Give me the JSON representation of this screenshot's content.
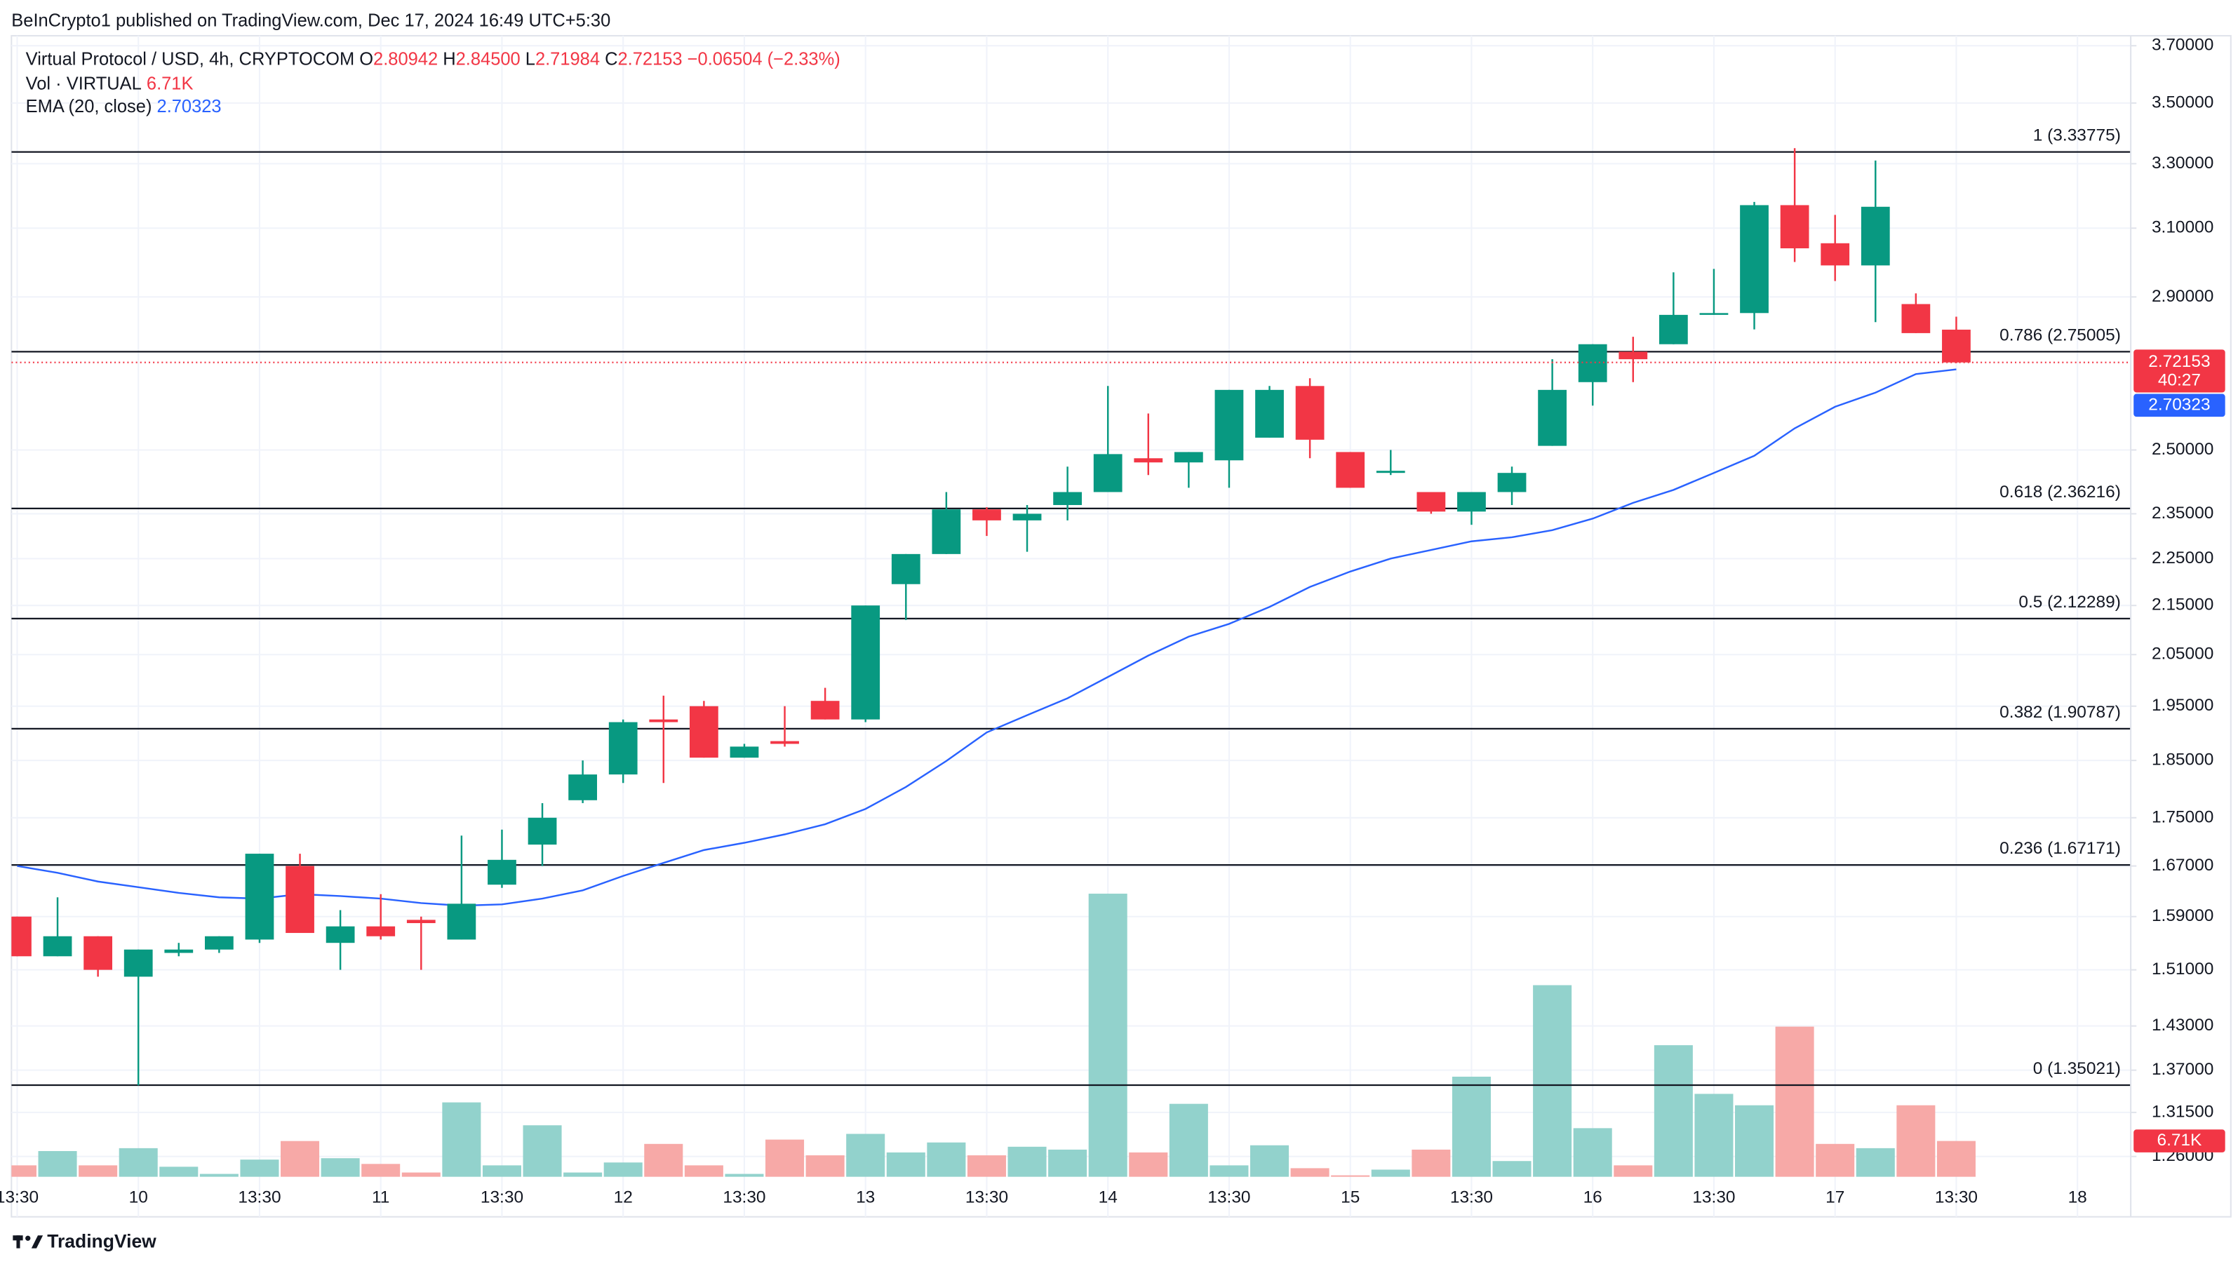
{
  "header": {
    "publisher": "BeInCrypto1 published on TradingView.com, Dec 17, 2024 16:49 UTC+5:30"
  },
  "legend": {
    "symbol": "Virtual Protocol / USD, 4h, CRYPTOCOM",
    "fields": [
      {
        "key": "O",
        "text": "2.80942"
      },
      {
        "key": "H",
        "text": "2.84500"
      },
      {
        "key": "L",
        "text": "2.71984"
      },
      {
        "key": "C",
        "text": "2.72153"
      }
    ],
    "change": "−0.06504 (−2.33%)"
  },
  "footer": {
    "brand": "TradingView"
  },
  "chart_data": {
    "type": "candlestick",
    "log_scale": true,
    "grid": true,
    "up_color": "#089981",
    "down_color": "#f23645",
    "volume_up_color": "#92d2cc",
    "volume_down_color": "#f7a9a7",
    "categories": [
      "13:30",
      null,
      null,
      "10",
      null,
      null,
      "13:30",
      null,
      null,
      "11",
      null,
      null,
      "13:30",
      null,
      null,
      "12",
      null,
      null,
      "13:30",
      null,
      null,
      "13",
      null,
      null,
      "13:30",
      null,
      null,
      "14",
      null,
      null,
      "13:30",
      null,
      null,
      "15",
      null,
      null,
      "13:30",
      null,
      null,
      "16",
      null,
      null,
      "13:30",
      null,
      null,
      "17",
      null,
      null,
      "13:30",
      null,
      null,
      "18"
    ],
    "open": [
      1.59,
      1.53,
      1.56,
      1.5,
      1.535,
      1.54,
      1.555,
      1.67,
      1.55,
      1.575,
      1.585,
      1.555,
      1.64,
      1.705,
      1.78,
      1.825,
      1.925,
      1.95,
      1.855,
      1.885,
      1.96,
      1.925,
      2.195,
      2.26,
      2.36,
      2.335,
      2.37,
      2.4,
      2.48,
      2.47,
      2.475,
      2.53,
      2.66,
      2.495,
      2.445,
      2.4,
      2.355,
      2.4,
      2.51,
      2.67,
      2.75,
      2.77,
      2.85,
      2.855,
      3.17,
      3.055,
      2.99,
      2.88,
      2.80942,
      null,
      null,
      null
    ],
    "high": [
      1.59,
      1.62,
      1.56,
      1.54,
      1.55,
      1.56,
      1.69,
      1.69,
      1.6,
      1.625,
      1.59,
      1.72,
      1.73,
      1.775,
      1.85,
      1.925,
      1.97,
      1.96,
      1.88,
      1.95,
      1.985,
      2.15,
      2.26,
      2.4,
      2.365,
      2.37,
      2.46,
      2.66,
      2.59,
      2.495,
      2.65,
      2.66,
      2.68,
      2.495,
      2.5,
      2.4,
      2.4,
      2.46,
      2.73,
      2.77,
      2.79,
      2.97,
      2.98,
      3.18,
      3.35,
      3.14,
      3.31,
      2.91,
      2.845,
      null,
      null,
      null
    ],
    "low": [
      1.53,
      1.53,
      1.5,
      1.35,
      1.53,
      1.535,
      1.55,
      1.565,
      1.51,
      1.555,
      1.51,
      1.555,
      1.635,
      1.67,
      1.775,
      1.81,
      1.81,
      1.855,
      1.855,
      1.875,
      1.925,
      1.92,
      2.12,
      2.26,
      2.3,
      2.265,
      2.335,
      2.4,
      2.44,
      2.41,
      2.41,
      2.53,
      2.48,
      2.41,
      2.44,
      2.35,
      2.325,
      2.37,
      2.51,
      2.61,
      2.67,
      2.77,
      2.85,
      2.81,
      3.0,
      2.945,
      2.83,
      2.8,
      2.71984,
      null,
      null,
      null
    ],
    "close": [
      1.53,
      1.56,
      1.51,
      1.54,
      1.54,
      1.56,
      1.69,
      1.565,
      1.575,
      1.56,
      1.58,
      1.61,
      1.68,
      1.75,
      1.825,
      1.92,
      1.92,
      1.855,
      1.875,
      1.88,
      1.925,
      2.15,
      2.26,
      2.36,
      2.335,
      2.35,
      2.4,
      2.49,
      2.47,
      2.495,
      2.65,
      2.65,
      2.525,
      2.41,
      2.45,
      2.355,
      2.4,
      2.445,
      2.65,
      2.77,
      2.73,
      2.85,
      2.855,
      3.17,
      3.04,
      2.99,
      3.165,
      2.8,
      2.72153,
      null,
      null,
      null
    ],
    "countdown": "40:27",
    "volume": {
      "name": "Vol · VIRTUAL",
      "values": [
        2140,
        4820,
        2140,
        5360,
        1880,
        540,
        3220,
        6700,
        3480,
        2410,
        800,
        13940,
        2140,
        9650,
        800,
        2680,
        6160,
        2140,
        540,
        6970,
        4020,
        8040,
        4560,
        6430,
        4020,
        5630,
        5090,
        53060,
        4560,
        13670,
        2140,
        5900,
        1610,
        270,
        1340,
        5090,
        18760,
        2950,
        35910,
        9110,
        2140,
        24660,
        15540,
        13400,
        28140,
        6160,
        5360,
        13400,
        6710,
        null,
        null,
        null
      ],
      "value_labels": [
        null,
        null,
        null,
        null,
        null,
        null,
        null,
        null,
        null,
        null,
        null,
        null,
        null,
        null,
        null,
        null,
        null,
        null,
        null,
        null,
        null,
        null,
        null,
        null,
        null,
        null,
        null,
        null,
        null,
        null,
        null,
        null,
        null,
        null,
        null,
        null,
        null,
        null,
        null,
        null,
        null,
        null,
        null,
        null,
        null,
        null,
        null,
        null,
        "6.71K",
        null,
        null,
        null
      ]
    },
    "ema": {
      "name": "EMA (20, close)",
      "color": "#2962ff",
      "values": [
        1.67,
        1.659,
        1.645,
        1.636,
        1.627,
        1.62,
        1.618,
        1.625,
        1.622,
        1.618,
        1.611,
        1.607,
        1.609,
        1.618,
        1.631,
        1.654,
        1.675,
        1.696,
        1.708,
        1.722,
        1.739,
        1.765,
        1.803,
        1.849,
        1.901,
        1.933,
        1.965,
        2.006,
        2.048,
        2.086,
        2.112,
        2.147,
        2.189,
        2.222,
        2.25,
        2.269,
        2.288,
        2.297,
        2.313,
        2.339,
        2.375,
        2.405,
        2.445,
        2.486,
        2.553,
        2.607,
        2.643,
        2.691,
        2.70323,
        null,
        null,
        null
      ]
    },
    "fib_levels": [
      {
        "value": 3.33775,
        "label": "1 (3.33775)"
      },
      {
        "value": 2.75005,
        "label": "0.786 (2.75005)"
      },
      {
        "value": 2.36216,
        "label": "0.618 (2.36216)"
      },
      {
        "value": 2.12289,
        "label": "0.5 (2.12289)"
      },
      {
        "value": 1.90787,
        "label": "0.382 (1.90787)"
      },
      {
        "value": 1.67171,
        "label": "0.236 (1.67171)"
      },
      {
        "value": 1.35021,
        "label": "0 (1.35021)"
      }
    ],
    "ylim": [
      1.232,
      3.736
    ],
    "yticks": [
      {
        "value": 3.7,
        "label": "3.70000"
      },
      {
        "value": 3.5,
        "label": "3.50000"
      },
      {
        "value": 3.3,
        "label": "3.30000"
      },
      {
        "value": 3.1,
        "label": "3.10000"
      },
      {
        "value": 2.9,
        "label": "2.90000"
      },
      {
        "value": 2.5,
        "label": "2.50000"
      },
      {
        "value": 2.35,
        "label": "2.35000"
      },
      {
        "value": 2.25,
        "label": "2.25000"
      },
      {
        "value": 2.15,
        "label": "2.15000"
      },
      {
        "value": 2.05,
        "label": "2.05000"
      },
      {
        "value": 1.95,
        "label": "1.95000"
      },
      {
        "value": 1.85,
        "label": "1.85000"
      },
      {
        "value": 1.75,
        "label": "1.75000"
      },
      {
        "value": 1.67,
        "label": "1.67000"
      },
      {
        "value": 1.59,
        "label": "1.59000"
      },
      {
        "value": 1.51,
        "label": "1.51000"
      },
      {
        "value": 1.43,
        "label": "1.43000"
      },
      {
        "value": 1.37,
        "label": "1.37000"
      },
      {
        "value": 1.315,
        "label": "1.31500"
      },
      {
        "value": 1.26,
        "label": "1.26000"
      }
    ]
  }
}
